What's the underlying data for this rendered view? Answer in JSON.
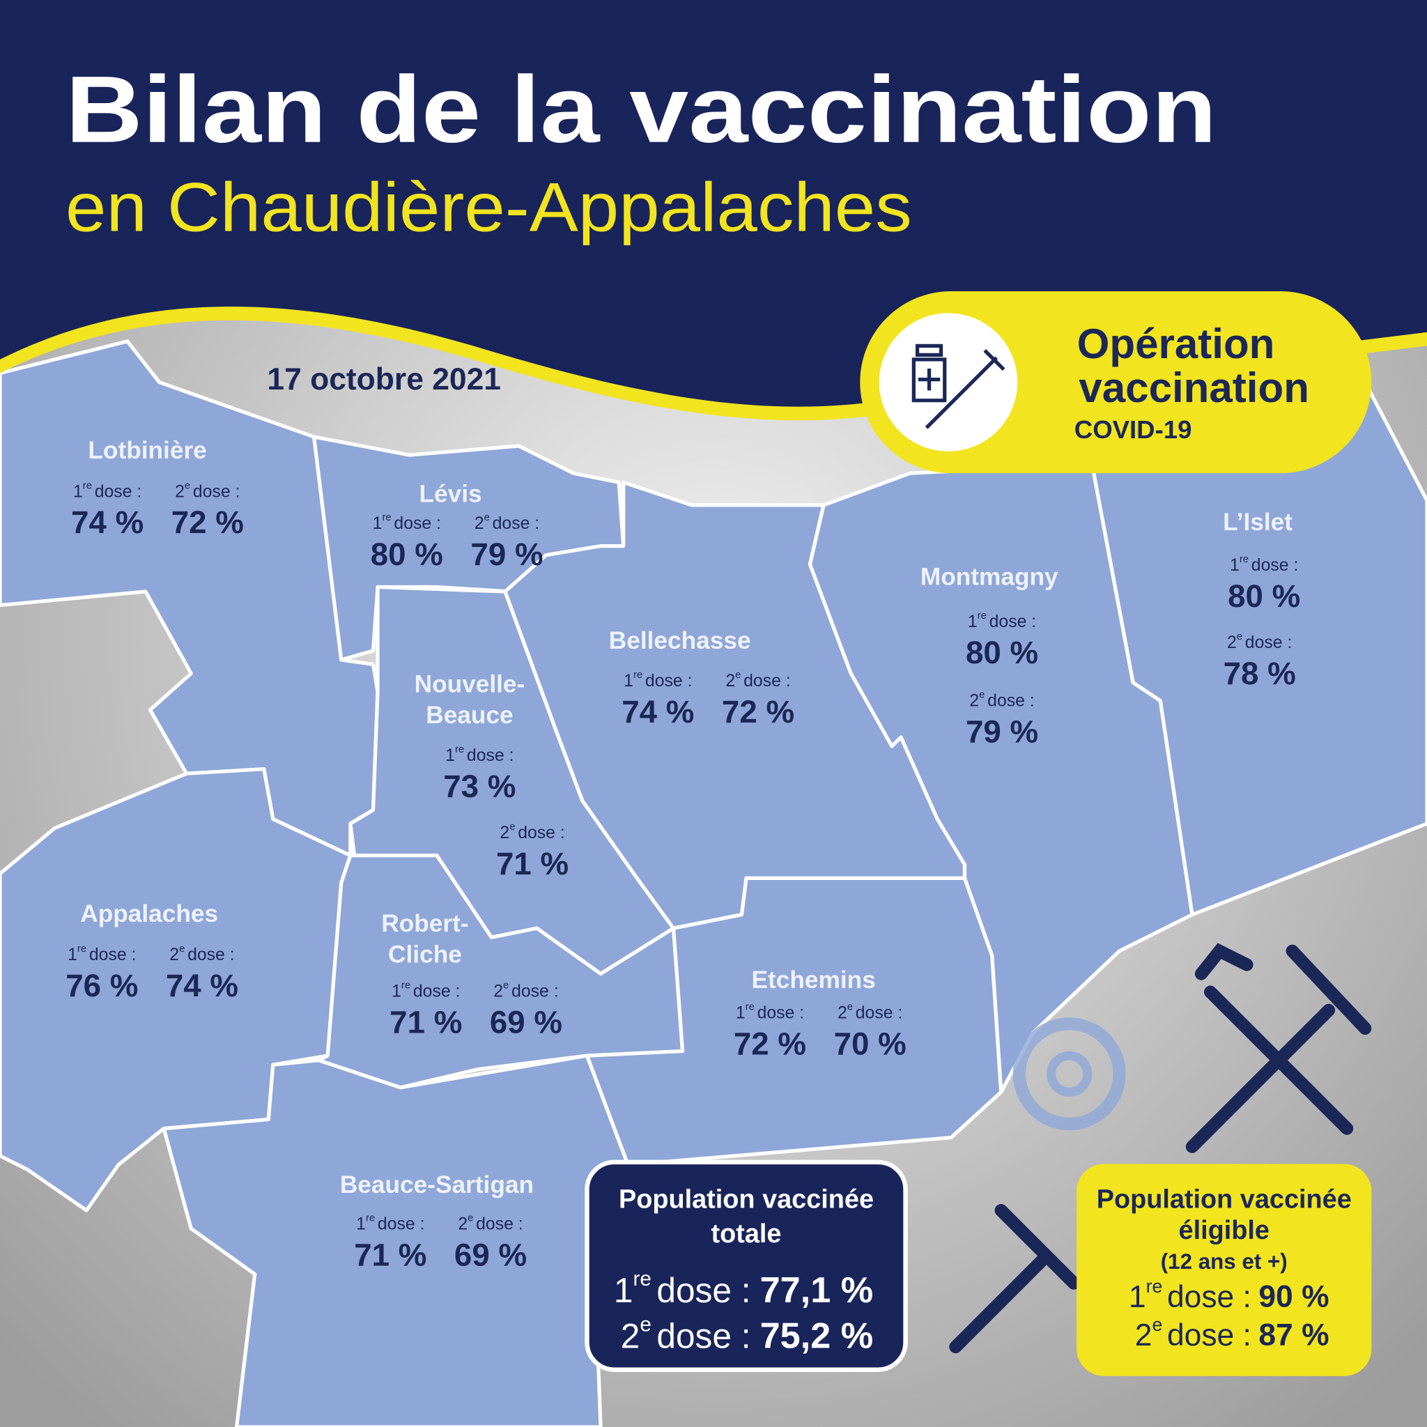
{
  "header": {
    "title": "Bilan de la vaccination",
    "subtitle": "en Chaudière-Appalaches"
  },
  "date": "17 octobre 2021",
  "badge": {
    "line1": "Opération",
    "line2": "vaccination",
    "line3": "COVID-19"
  },
  "labels": {
    "dose1": {
      "number": "1",
      "suffix": "re",
      "text": "dose :"
    },
    "dose2": {
      "number": "2",
      "suffix": "e",
      "text": "dose :"
    }
  },
  "regions": [
    {
      "name_lines": [
        "Lotbinière"
      ],
      "dose1": "74 %",
      "dose2": "72 %"
    },
    {
      "name_lines": [
        "Lévis"
      ],
      "dose1": "80 %",
      "dose2": "79 %"
    },
    {
      "name_lines": [
        "Nouvelle-",
        "Beauce"
      ],
      "dose1": "73 %",
      "dose2": "71 %"
    },
    {
      "name_lines": [
        "Bellechasse"
      ],
      "dose1": "74 %",
      "dose2": "72 %"
    },
    {
      "name_lines": [
        "Montmagny"
      ],
      "dose1": "80 %",
      "dose2": "79 %"
    },
    {
      "name_lines": [
        "L’Islet"
      ],
      "dose1": "80 %",
      "dose2": "78 %"
    },
    {
      "name_lines": [
        "Appalaches"
      ],
      "dose1": "76 %",
      "dose2": "74 %"
    },
    {
      "name_lines": [
        "Robert-",
        "Cliche"
      ],
      "dose1": "71 %",
      "dose2": "69 %"
    },
    {
      "name_lines": [
        "Etchemins"
      ],
      "dose1": "72 %",
      "dose2": "70 %"
    },
    {
      "name_lines": [
        "Beauce-Sartigan"
      ],
      "dose1": "71 %",
      "dose2": "69 %"
    }
  ],
  "totals": {
    "title_lines": [
      "Population vaccinée",
      "totale"
    ],
    "dose1": "77,1 %",
    "dose2": "75,2 %"
  },
  "eligible": {
    "title_lines": [
      "Population vaccinée",
      "éligible"
    ],
    "note": "(12 ans et +)",
    "dose1": "90 %",
    "dose2": "87 %"
  }
}
